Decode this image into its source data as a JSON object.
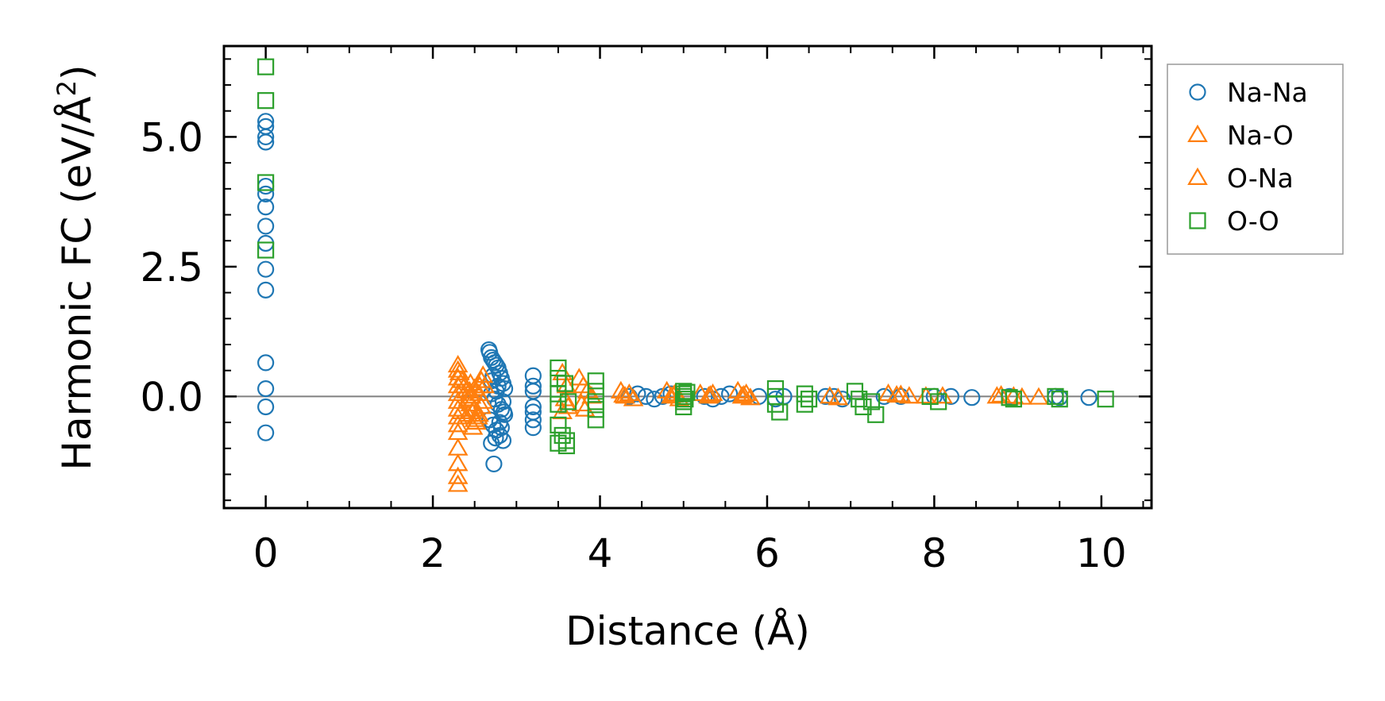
{
  "chart_data": {
    "type": "scatter",
    "xlabel": "Distance (Å)",
    "ylabel_main": "Harmonic FC (eV/Å",
    "ylabel_sup": "2",
    "ylabel_close": ")",
    "xlim": [
      -0.5,
      10.6
    ],
    "ylim": [
      -2.15,
      6.75
    ],
    "xticks": [
      0,
      2,
      4,
      6,
      8,
      10
    ],
    "xtick_labels": [
      "0",
      "2",
      "4",
      "6",
      "8",
      "10"
    ],
    "yticks": [
      0.0,
      2.5,
      5.0
    ],
    "ytick_labels": [
      "0.0",
      "2.5",
      "5.0"
    ],
    "grid": false,
    "zero_line": true,
    "legend_position": "outside right, top",
    "series": [
      {
        "name": "Na-Na",
        "marker": "circle",
        "color": "#1f77b4",
        "x": [
          0,
          0,
          0,
          0,
          0,
          0,
          0,
          0,
          0,
          0,
          0,
          0,
          0,
          0,
          0,
          2.67,
          2.68,
          2.7,
          2.72,
          2.74,
          2.76,
          2.78,
          2.8,
          2.82,
          2.84,
          2.86,
          2.7,
          2.74,
          2.78,
          2.82,
          2.86,
          2.68,
          2.72,
          2.76,
          2.8,
          2.84,
          2.7,
          2.75,
          2.8,
          2.85,
          2.72,
          2.78,
          2.84,
          2.7,
          2.76,
          2.82,
          2.73,
          3.2,
          3.2,
          3.2,
          3.2,
          3.2,
          3.2,
          3.2,
          4.35,
          4.45,
          4.55,
          4.65,
          4.75,
          4.85,
          5.25,
          5.35,
          5.45,
          5.55,
          5.9,
          6.1,
          6.2,
          6.7,
          6.8,
          6.9,
          7.4,
          7.6,
          8.0,
          8.2,
          8.45,
          8.9,
          9.45,
          9.5,
          9.85
        ],
        "y": [
          5.3,
          5.2,
          5.0,
          4.9,
          3.9,
          3.65,
          3.28,
          2.95,
          2.45,
          2.05,
          0.65,
          0.15,
          -0.2,
          -0.7,
          4.05,
          0.9,
          0.85,
          0.75,
          0.7,
          0.65,
          0.6,
          0.55,
          0.45,
          0.35,
          0.25,
          0.15,
          0.05,
          -0.05,
          -0.15,
          -0.25,
          -0.35,
          -0.45,
          -0.55,
          -0.65,
          -0.75,
          -0.85,
          -0.9,
          -0.8,
          -0.5,
          -0.3,
          0.4,
          0.2,
          -0.1,
          0.3,
          0.1,
          -0.6,
          -1.3,
          0.4,
          0.2,
          0.1,
          -0.2,
          -0.3,
          -0.45,
          -0.6,
          0.0,
          0.05,
          0.0,
          -0.05,
          0.0,
          0.05,
          0.0,
          -0.05,
          0.0,
          0.05,
          0.0,
          -0.05,
          0.0,
          0.0,
          0.0,
          -0.05,
          0.0,
          0.0,
          0.0,
          0.0,
          -0.02,
          0.0,
          0.0,
          -0.02,
          -0.02
        ]
      },
      {
        "name": "Na-O",
        "marker": "triangle",
        "color": "#ff7f0e",
        "x": [
          2.3,
          2.3,
          2.3,
          2.3,
          2.3,
          2.3,
          2.3,
          2.3,
          2.3,
          2.3,
          2.3,
          2.3,
          2.3,
          2.3,
          2.35,
          2.38,
          2.4,
          2.42,
          2.45,
          2.47,
          2.5,
          2.52,
          2.55,
          2.58,
          2.6,
          2.45,
          2.5,
          2.55,
          2.6,
          2.42,
          2.48,
          2.52,
          2.58,
          2.4,
          2.46,
          2.56,
          2.5,
          3.55,
          3.6,
          3.58,
          3.62,
          3.55,
          3.75,
          3.8,
          3.85,
          3.9,
          3.78,
          3.82,
          4.25,
          4.3,
          4.35,
          4.4,
          4.8,
          4.85,
          4.9,
          4.95,
          5.2,
          5.3,
          5.35,
          5.65,
          5.7,
          5.75,
          5.8,
          6.75,
          6.85,
          7.45,
          7.6,
          7.7,
          7.9,
          8.1,
          8.75,
          8.95,
          9.05,
          9.25
        ],
        "y": [
          0.6,
          0.5,
          0.35,
          0.2,
          0.05,
          -0.1,
          -0.25,
          -0.4,
          -0.55,
          -0.7,
          -1.0,
          -1.3,
          -1.55,
          -1.7,
          0.3,
          0.2,
          0.1,
          -0.05,
          -0.15,
          -0.3,
          -0.45,
          -0.5,
          -0.35,
          -0.2,
          0.4,
          0.25,
          0.15,
          0.05,
          -0.1,
          -0.35,
          -0.6,
          -0.5,
          0.3,
          -0.4,
          0.0,
          0.2,
          -0.25,
          0.45,
          0.2,
          -0.05,
          -0.2,
          -0.3,
          0.35,
          0.2,
          0.1,
          0.0,
          -0.15,
          -0.25,
          0.1,
          0.0,
          0.05,
          -0.05,
          0.1,
          0.0,
          0.05,
          -0.05,
          0.05,
          0.0,
          0.05,
          0.1,
          0.0,
          0.05,
          -0.03,
          0.0,
          -0.03,
          0.05,
          0.03,
          0.0,
          0.0,
          0.0,
          0.0,
          0.0,
          -0.02,
          -0.02
        ]
      },
      {
        "name": "O-Na",
        "marker": "triangle",
        "color": "#ff7f0e",
        "x": [
          2.32,
          2.34,
          2.44,
          2.54,
          2.62,
          4.28,
          4.88,
          5.32,
          5.72,
          7.55,
          8.8
        ],
        "y": [
          0.45,
          -0.3,
          0.1,
          -0.4,
          0.2,
          0.02,
          0.02,
          0.02,
          0.02,
          0.02,
          0.02
        ]
      },
      {
        "name": "O-O",
        "marker": "square",
        "color": "#2ca02c",
        "x": [
          0,
          0,
          0,
          0,
          3.5,
          3.5,
          3.5,
          3.5,
          3.5,
          3.5,
          3.55,
          3.6,
          3.6,
          3.58,
          3.62,
          3.95,
          3.95,
          3.95,
          3.95,
          3.95,
          5.0,
          5.0,
          5.0,
          5.0,
          5.0,
          5.02,
          5.04,
          6.1,
          6.1,
          6.1,
          6.15,
          6.45,
          6.45,
          6.5,
          7.05,
          7.1,
          7.15,
          7.25,
          7.3,
          7.95,
          8.05,
          8.9,
          8.95,
          9.45,
          9.5,
          10.05
        ],
        "y": [
          6.35,
          5.7,
          4.12,
          2.82,
          0.55,
          0.35,
          0.05,
          -0.15,
          -0.55,
          -0.9,
          -0.75,
          -0.95,
          -0.85,
          0.25,
          -0.1,
          0.3,
          0.1,
          -0.1,
          -0.25,
          -0.45,
          0.1,
          0.0,
          -0.1,
          -0.2,
          0.05,
          -0.05,
          0.08,
          0.15,
          0.0,
          -0.15,
          -0.3,
          0.05,
          -0.15,
          -0.05,
          0.1,
          -0.05,
          -0.2,
          -0.1,
          -0.35,
          0.0,
          -0.1,
          -0.02,
          -0.05,
          0.0,
          -0.05,
          -0.05
        ]
      }
    ]
  }
}
